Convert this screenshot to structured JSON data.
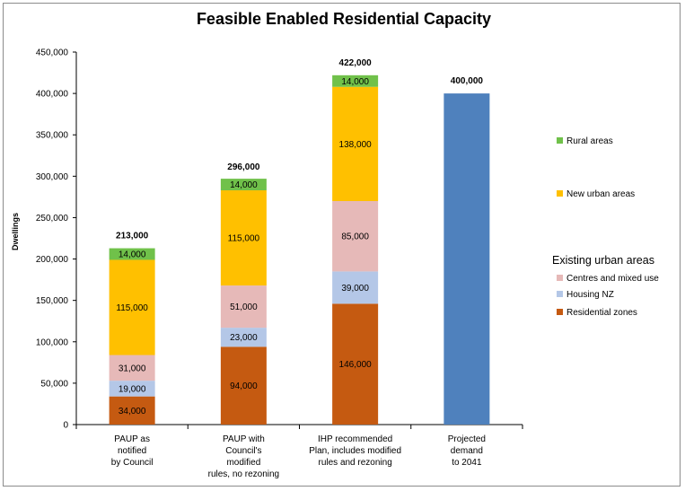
{
  "chart_data": {
    "type": "bar",
    "stacked": true,
    "title": "Feasible Enabled Residential Capacity",
    "xlabel": "",
    "ylabel": "Dwellings",
    "ylim": [
      0,
      450000
    ],
    "ytick_step": 50000,
    "grid": false,
    "categories": [
      [
        "PAUP as",
        "notified",
        "by Council"
      ],
      [
        "PAUP with",
        "Council's",
        "modified",
        "rules, no rezoning"
      ],
      [
        "IHP recommended",
        "Plan, includes modified",
        "rules and rezoning"
      ],
      [
        "Projected",
        "demand",
        "to 2041"
      ]
    ],
    "series": [
      {
        "name": "Residential zones",
        "color": "#c55a11",
        "values": [
          34000,
          94000,
          146000,
          0
        ],
        "labels": [
          "34,000",
          "94,000",
          "146,000",
          ""
        ]
      },
      {
        "name": "Housing NZ",
        "color": "#b4c7e7",
        "values": [
          19000,
          23000,
          39000,
          0
        ],
        "labels": [
          "19,000",
          "23,000",
          "39,000",
          ""
        ]
      },
      {
        "name": "Centres and mixed use",
        "color": "#e6b9b8",
        "values": [
          31000,
          51000,
          85000,
          0
        ],
        "labels": [
          "31,000",
          "51,000",
          "85,000",
          ""
        ]
      },
      {
        "name": "New urban areas",
        "color": "#ffc000",
        "values": [
          115000,
          115000,
          138000,
          0
        ],
        "labels": [
          "115,000",
          "115,000",
          "138,000",
          ""
        ]
      },
      {
        "name": "Rural areas",
        "color": "#70c14a",
        "values": [
          14000,
          14000,
          14000,
          0
        ],
        "labels": [
          "14,000",
          "14,000",
          "14,000",
          ""
        ]
      },
      {
        "name": "Projected demand",
        "color": "#4f81bd",
        "values": [
          0,
          0,
          0,
          400000
        ],
        "labels": [
          "",
          "",
          "",
          ""
        ]
      }
    ],
    "totals": [
      "213,000",
      "296,000",
      "422,000",
      "400,000"
    ],
    "total_values": [
      213000,
      296000,
      422000,
      400000
    ],
    "legend": {
      "position": "right",
      "items": [
        {
          "label": "Rural areas",
          "color": "#70c14a"
        },
        {
          "label": "New urban areas",
          "color": "#ffc000"
        }
      ],
      "group_heading": "Existing urban areas",
      "group_items": [
        {
          "label": "Centres and mixed use",
          "color": "#e6b9b8"
        },
        {
          "label": "Housing NZ",
          "color": "#b4c7e7"
        },
        {
          "label": "Residential zones",
          "color": "#c55a11"
        }
      ]
    }
  }
}
